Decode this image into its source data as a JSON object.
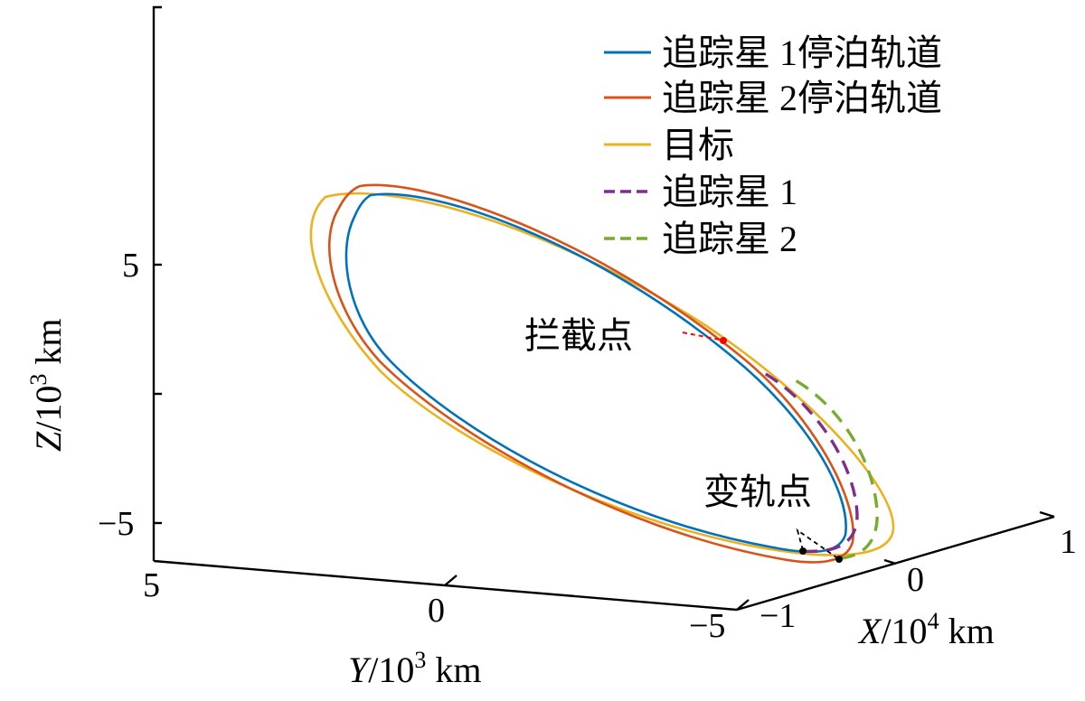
{
  "chart_data": {
    "type": "line",
    "title": "",
    "axes": {
      "x": {
        "label_var": "X",
        "label_unit": "/10",
        "label_exp": "4",
        "label_km": " km",
        "ticks": [
          "−1",
          "0",
          "1"
        ],
        "range": [
          -1,
          1
        ]
      },
      "y": {
        "label_var": "Y",
        "label_unit": "/10",
        "label_exp": "3",
        "label_km": " km",
        "ticks": [
          "5",
          "0",
          "−5"
        ],
        "range": [
          5,
          -5
        ]
      },
      "z": {
        "label_var": "Z",
        "label_unit": "/10",
        "label_exp": "3",
        "label_km": " km",
        "ticks": [
          "5",
          "−5"
        ],
        "range": [
          -5,
          5
        ]
      }
    },
    "series": [
      {
        "name": "追踪星 1停泊轨道",
        "color": "#0072BD",
        "dash": "solid"
      },
      {
        "name": "追踪星 2停泊轨道",
        "color": "#D95319",
        "dash": "solid"
      },
      {
        "name": "目标",
        "color": "#EDB120",
        "dash": "solid"
      },
      {
        "name": "追踪星 1",
        "color": "#7E2F8E",
        "dash": "dashed"
      },
      {
        "name": "追踪星 2",
        "color": "#77AC30",
        "dash": "dashed"
      }
    ],
    "annotations": [
      {
        "text": "拦截点",
        "color": "#FF0000"
      },
      {
        "text": "变轨点",
        "color": "#000000"
      }
    ],
    "legend_position": "top-right",
    "grid": false
  }
}
